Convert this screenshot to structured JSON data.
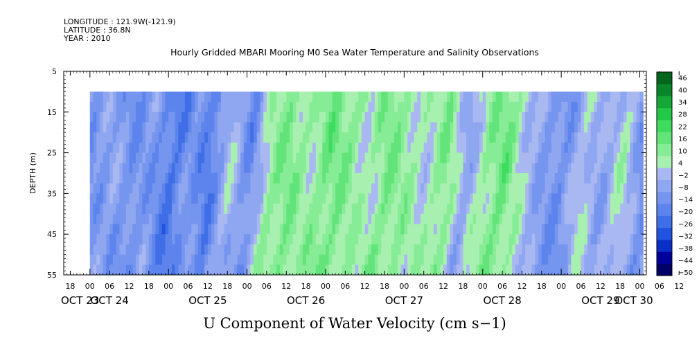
{
  "header": {
    "longitude": "LONGITUDE : 121.9W(-121.9)",
    "latitude": "LATITUDE : 36.8N",
    "year": "YEAR : 2010"
  },
  "chart_data": {
    "type": "heatmap",
    "title": "Hourly Gridded MBARI Mooring M0 Sea Water Temperature and Salinity Observations",
    "xlabel": "U Component of Water Velocity (cm s−1)",
    "ylabel": "DEPTH (m)",
    "xlim_hours": [
      -8,
      170
    ],
    "ylim": [
      5,
      55
    ],
    "y_inverted": true,
    "y_ticks": [
      5,
      15,
      25,
      35,
      45,
      55
    ],
    "x_hour_labels": [
      "18",
      "00",
      "06",
      "12",
      "18",
      "00",
      "06",
      "12",
      "18",
      "00",
      "06",
      "12",
      "18",
      "00",
      "06",
      "12",
      "18",
      "00",
      "06",
      "12",
      "18",
      "00",
      "06",
      "12",
      "18",
      "00",
      "06",
      "12",
      "18",
      "00",
      "06",
      "12"
    ],
    "x_day_labels": [
      {
        "label": "OCT 23",
        "hour": -3
      },
      {
        "label": "OCT 24",
        "hour": 6
      },
      {
        "label": "OCT 25",
        "hour": 36
      },
      {
        "label": "OCT 26",
        "hour": 66
      },
      {
        "label": "OCT 27",
        "hour": 96
      },
      {
        "label": "OCT 28",
        "hour": 126
      },
      {
        "label": "OCT 29",
        "hour": 156
      },
      {
        "label": "OCT 30",
        "hour": 182
      }
    ],
    "data_extent": {
      "depth_top": 10,
      "depth_bottom": 55
    },
    "colorbar": {
      "levels": [
        -50,
        -44,
        -38,
        -32,
        -26,
        -20,
        -14,
        -8,
        -2,
        4,
        10,
        16,
        22,
        28,
        34,
        40,
        46
      ],
      "labels": [
        "46",
        "40",
        "34",
        "28",
        "22",
        "16",
        "10",
        "4",
        "−2",
        "−8",
        "−14",
        "−20",
        "−26",
        "−32",
        "−38",
        "−44",
        "−50"
      ]
    },
    "velocity_profile_hourly_sample": [
      {
        "hour": 0,
        "u": -10
      },
      {
        "hour": 6,
        "u": -6
      },
      {
        "hour": 12,
        "u": -12
      },
      {
        "hour": 18,
        "u": -8
      },
      {
        "hour": 24,
        "u": -20
      },
      {
        "hour": 30,
        "u": -10
      },
      {
        "hour": 36,
        "u": -18
      },
      {
        "hour": 42,
        "u": 2
      },
      {
        "hour": 48,
        "u": -14
      },
      {
        "hour": 54,
        "u": 10
      },
      {
        "hour": 60,
        "u": 14
      },
      {
        "hour": 66,
        "u": 8
      },
      {
        "hour": 72,
        "u": 16
      },
      {
        "hour": 78,
        "u": 12
      },
      {
        "hour": 84,
        "u": 6
      },
      {
        "hour": 90,
        "u": 14
      },
      {
        "hour": 96,
        "u": 10
      },
      {
        "hour": 102,
        "u": 4
      },
      {
        "hour": 108,
        "u": 14
      },
      {
        "hour": 114,
        "u": -6
      },
      {
        "hour": 120,
        "u": 10
      },
      {
        "hour": 126,
        "u": 16
      },
      {
        "hour": 132,
        "u": 2
      },
      {
        "hour": 138,
        "u": -8
      },
      {
        "hour": 144,
        "u": -12
      },
      {
        "hour": 150,
        "u": 4
      },
      {
        "hour": 156,
        "u": -6
      },
      {
        "hour": 162,
        "u": 6
      },
      {
        "hour": 168,
        "u": -12
      }
    ]
  }
}
